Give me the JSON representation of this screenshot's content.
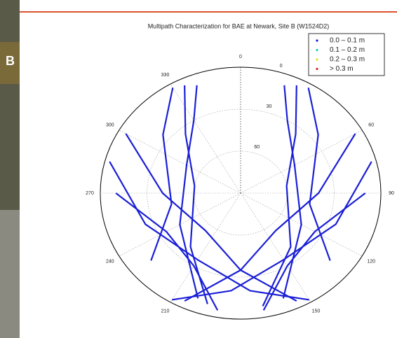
{
  "photo_letter": "B",
  "chart_data": {
    "type": "polar",
    "title": "Multipath Characterization for BAE at Newark, Site B (W1524D2)",
    "azticks": [
      0,
      60,
      90,
      120,
      150,
      210,
      240,
      270,
      300,
      330
    ],
    "elticks": [
      0,
      30,
      60
    ],
    "ellim": [
      0,
      90
    ],
    "track_color": "#1a1fd6",
    "legend": [
      {
        "label": "0.0 – 0.1 m",
        "color": "#1a1fd6"
      },
      {
        "label": "0.1 – 0.2 m",
        "color": "#19c9c0"
      },
      {
        "label": "0.2 – 0.3 m",
        "color": "#e8e020"
      },
      {
        "label": "> 0.3 m",
        "color": "#e02020"
      }
    ],
    "tracks": [
      {
        "az": [
          25,
          40,
          80,
          140,
          170
        ],
        "el": [
          5,
          35,
          60,
          40,
          8
        ]
      },
      {
        "az": [
          335,
          320,
          280,
          220,
          195
        ],
        "el": [
          5,
          35,
          60,
          40,
          8
        ]
      },
      {
        "az": [
          20,
          30,
          60,
          120,
          160
        ],
        "el": [
          8,
          30,
          50,
          45,
          10
        ]
      },
      {
        "az": [
          340,
          330,
          300,
          240,
          200
        ],
        "el": [
          8,
          30,
          50,
          45,
          10
        ]
      },
      {
        "az": [
          60,
          90,
          140,
          180,
          205
        ],
        "el": [
          5,
          40,
          55,
          35,
          5
        ]
      },
      {
        "az": [
          300,
          270,
          220,
          180,
          155
        ],
        "el": [
          5,
          40,
          55,
          35,
          5
        ]
      },
      {
        "az": [
          75,
          110,
          150,
          185,
          210
        ],
        "el": [
          3,
          25,
          35,
          20,
          2
        ]
      },
      {
        "az": [
          285,
          250,
          210,
          175,
          150
        ],
        "el": [
          3,
          25,
          35,
          20,
          2
        ]
      },
      {
        "az": [
          90,
          120,
          150,
          170
        ],
        "el": [
          10,
          35,
          30,
          5
        ]
      },
      {
        "az": [
          270,
          240,
          210,
          190
        ],
        "el": [
          10,
          35,
          30,
          5
        ]
      },
      {
        "az": [
          30,
          50,
          100,
          130
        ],
        "el": [
          3,
          25,
          45,
          15
        ]
      },
      {
        "az": [
          330,
          310,
          260,
          230
        ],
        "el": [
          3,
          25,
          45,
          15
        ]
      }
    ]
  }
}
